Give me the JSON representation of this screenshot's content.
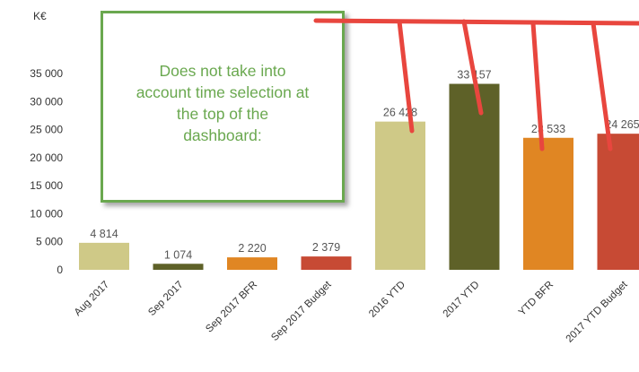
{
  "chart_data": {
    "type": "bar",
    "unit_label": "K€",
    "categories": [
      "Aug 2017",
      "Sep 2017",
      "Sep 2017 BFR",
      "Sep 2017 Budget",
      "2016 YTD",
      "2017 YTD",
      "YTD BFR",
      "2017 YTD Budget"
    ],
    "values": [
      4814,
      1074,
      2220,
      2379,
      26428,
      33157,
      23533,
      24265
    ],
    "value_labels": [
      "4 814",
      "1 074",
      "2 220",
      "2 379",
      "26 428",
      "33 157",
      "23 533",
      "24 265"
    ],
    "colors": [
      "#cfc987",
      "#5e6128",
      "#e08623",
      "#c74a34",
      "#cfc987",
      "#5e6128",
      "#e08623",
      "#c74a34"
    ],
    "yticks": [
      0,
      5000,
      10000,
      15000,
      20000,
      25000,
      30000,
      35000
    ],
    "ytick_labels": [
      "0",
      "5 000",
      "10 000",
      "15 000",
      "20 000",
      "25 000",
      "30 000",
      "35 000"
    ],
    "ylim": [
      0,
      35000
    ],
    "grid": false,
    "legend": "none"
  },
  "annotation": {
    "text_lines": [
      "Does not take into",
      "account time selection at",
      "the top of the",
      "dashboard:"
    ],
    "border_color": "#6aa84f",
    "marker_color": "#e8463e"
  }
}
